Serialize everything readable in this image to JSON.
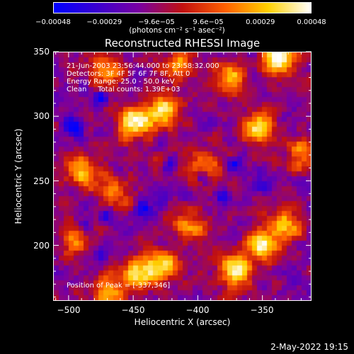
{
  "chart_data": {
    "type": "heatmap",
    "title": "Reconstructed RHESSI Image",
    "xlabel": "Heliocentric X (arcsec)",
    "ylabel": "Heliocentric Y (arcsec)",
    "xlim": [
      -512,
      -312
    ],
    "ylim": [
      157,
      350
    ],
    "x_ticks": [
      -500,
      -450,
      -400,
      -350
    ],
    "y_ticks": [
      200,
      250,
      300,
      350
    ],
    "x_tick_labels": [
      "−500",
      "−450",
      "−400",
      "−350"
    ],
    "y_tick_labels": [
      "200",
      "250",
      "300",
      "350"
    ],
    "colorbar": {
      "tick_labels": [
        "−0.00048",
        "−0.00029",
        "−9.6e−05",
        "9.6e−05",
        "0.00029",
        "0.00048"
      ],
      "tick_values": [
        -0.00048,
        -0.00029,
        -9.6e-05,
        9.6e-05,
        0.00029,
        0.00048
      ],
      "range": [
        -0.00048,
        0.00048
      ],
      "units": "(photons cm⁻² s⁻¹ asec⁻²)",
      "colormap": [
        "#0000ff",
        "#3a00d0",
        "#7a00a0",
        "#c01010",
        "#ff6000",
        "#ffd000",
        "#ffffff"
      ]
    },
    "annotations": {
      "time_range": "21-Jun-2003 23:56:44.000 to 23:58:32.000",
      "detectors": "Detectors: 3F 4F 5F 6F 7F 8F, Att 0",
      "energy": "Energy Range: 25.0 - 50.0 keV",
      "clean": "Clean     Total counts: 1.39E+03",
      "peak": "Position of Peak = [-337,346]"
    },
    "bright_sources": [
      {
        "x": -449,
        "y": 296,
        "level": 1.0
      },
      {
        "x": -426,
        "y": 304,
        "level": 0.85
      },
      {
        "x": -353,
        "y": 292,
        "level": 0.8
      },
      {
        "x": -337,
        "y": 346,
        "level": 1.0
      },
      {
        "x": -375,
        "y": 330,
        "level": 0.7
      },
      {
        "x": -350,
        "y": 200,
        "level": 0.95
      },
      {
        "x": -370,
        "y": 180,
        "level": 0.85
      },
      {
        "x": -330,
        "y": 215,
        "level": 0.7
      },
      {
        "x": -490,
        "y": 258,
        "level": 0.75
      },
      {
        "x": -465,
        "y": 240,
        "level": 0.55
      },
      {
        "x": -445,
        "y": 178,
        "level": 0.9
      },
      {
        "x": -425,
        "y": 185,
        "level": 0.7
      },
      {
        "x": -395,
        "y": 262,
        "level": 0.65
      },
      {
        "x": -405,
        "y": 215,
        "level": 0.6
      },
      {
        "x": -495,
        "y": 205,
        "level": 0.55
      },
      {
        "x": -470,
        "y": 335,
        "level": 0.55
      },
      {
        "x": -415,
        "y": 340,
        "level": 0.6
      },
      {
        "x": -318,
        "y": 270,
        "level": 0.6
      },
      {
        "x": -470,
        "y": 165,
        "level": 0.6
      }
    ],
    "dark_sources": [
      {
        "x": -397,
        "y": 254
      },
      {
        "x": -420,
        "y": 262
      },
      {
        "x": -470,
        "y": 224
      },
      {
        "x": -476,
        "y": 315
      },
      {
        "x": -500,
        "y": 297
      },
      {
        "x": -494,
        "y": 290
      },
      {
        "x": -487,
        "y": 215
      },
      {
        "x": -350,
        "y": 246
      },
      {
        "x": -475,
        "y": 192
      },
      {
        "x": -380,
        "y": 236
      },
      {
        "x": -442,
        "y": 228
      },
      {
        "x": -372,
        "y": 262
      }
    ]
  },
  "datestamp": "2-May-2022 19:15"
}
